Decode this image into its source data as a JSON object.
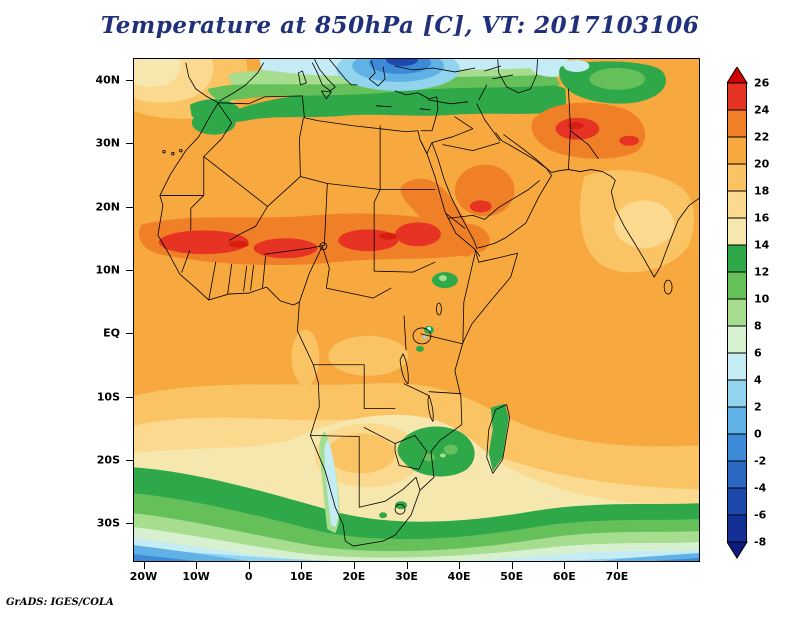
{
  "title": "Temperature at 850hPa [C], VT: 2017103106",
  "credit": "GrADS: IGES/COLA",
  "axes": {
    "y_ticks": [
      "40N",
      "30N",
      "20N",
      "10N",
      "EQ",
      "10S",
      "20S",
      "30S"
    ],
    "x_ticks": [
      "20W",
      "10W",
      "0",
      "10E",
      "20E",
      "30E",
      "40E",
      "50E",
      "60E",
      "70E"
    ]
  },
  "colorbar": {
    "labels": [
      "26",
      "24",
      "22",
      "20",
      "18",
      "16",
      "14",
      "12",
      "10",
      "8",
      "6",
      "4",
      "2",
      "0",
      "-2",
      "-4",
      "-6",
      "-8"
    ],
    "box_colors_top_to_bottom": [
      "#e63323",
      "#f08028",
      "#f7a93f",
      "#fac465",
      "#fbd98e",
      "#f6e7ae",
      "#2fa84a",
      "#66c05a",
      "#a6dd8f",
      "#d7f0cf",
      "#c5ecf4",
      "#92d4ee",
      "#5fb1e6",
      "#3c8ad8",
      "#2a68c4",
      "#1d49ae",
      "#142f96"
    ],
    "arrow_top_color": "#d10000",
    "arrow_bottom_color": "#0c1c7e"
  },
  "chart_data": {
    "type": "heatmap",
    "title": "Temperature at 850hPa [C], VT: 2017103106",
    "variable": "Temperature at 850hPa",
    "units": "C",
    "valid_time": "2017103106",
    "region": "Africa, Middle East and surrounding oceans (approx 20W-80E, 36S-43N)",
    "lat_ticks": [
      "40N",
      "30N",
      "20N",
      "10N",
      "EQ",
      "10S",
      "20S",
      "30S"
    ],
    "lon_ticks": [
      "20W",
      "10W",
      "0",
      "10E",
      "20E",
      "30E",
      "40E",
      "50E",
      "60E",
      "70E"
    ],
    "contour_levels_c": [
      -8,
      -6,
      -4,
      -2,
      0,
      2,
      4,
      6,
      8,
      10,
      12,
      14,
      16,
      18,
      20,
      22,
      24,
      26
    ],
    "colors_cold_to_hot": [
      "#142f96",
      "#1d49ae",
      "#2a68c4",
      "#3c8ad8",
      "#5fb1e6",
      "#92d4ee",
      "#c5ecf4",
      "#d7f0cf",
      "#a6dd8f",
      "#66c05a",
      "#2fa84a",
      "#f6e7ae",
      "#fbd98e",
      "#fac465",
      "#f7a93f",
      "#f08028",
      "#e63323"
    ],
    "below_min_color": "#0c1c7e",
    "above_max_color": "#d10000",
    "legend_position": "right",
    "grid": false,
    "notable_features": [
      "Warmest band (24-26C, locally above 26C) stretches across the Sahel from Senegal/Mali to Chad and Sudan near 10-16N",
      "Second hot area (22-26C) over the northern Arabian Peninsula, Iraq and southern Iran",
      "Widespread 20-22C over the Sahara, tropical Atlantic, Congo basin and equatorial Indian Ocean",
      "Lighter 14-18C over the Arabian Sea and much of the southern African interior",
      "Cool band (8-14C) along the Mediterranean, over the Atlas Mountains and into Turkey/Caspian region",
      "Coldest air (0C down to below -6C) in a tongue over southeastern Europe at the top edge of the map",
      "Southern Ocean cools from 12C near 25S to about -2C at the southern map edge",
      "Cool green patches (10-14C) over Zimbabwe/Mozambique, eastern Madagascar and the Ethiopian/Kenyan highlands",
      "Pale cold upwelling strip (4-8C) along the Namibian coast"
    ],
    "source_stamp": "GrADS: IGES/COLA"
  }
}
